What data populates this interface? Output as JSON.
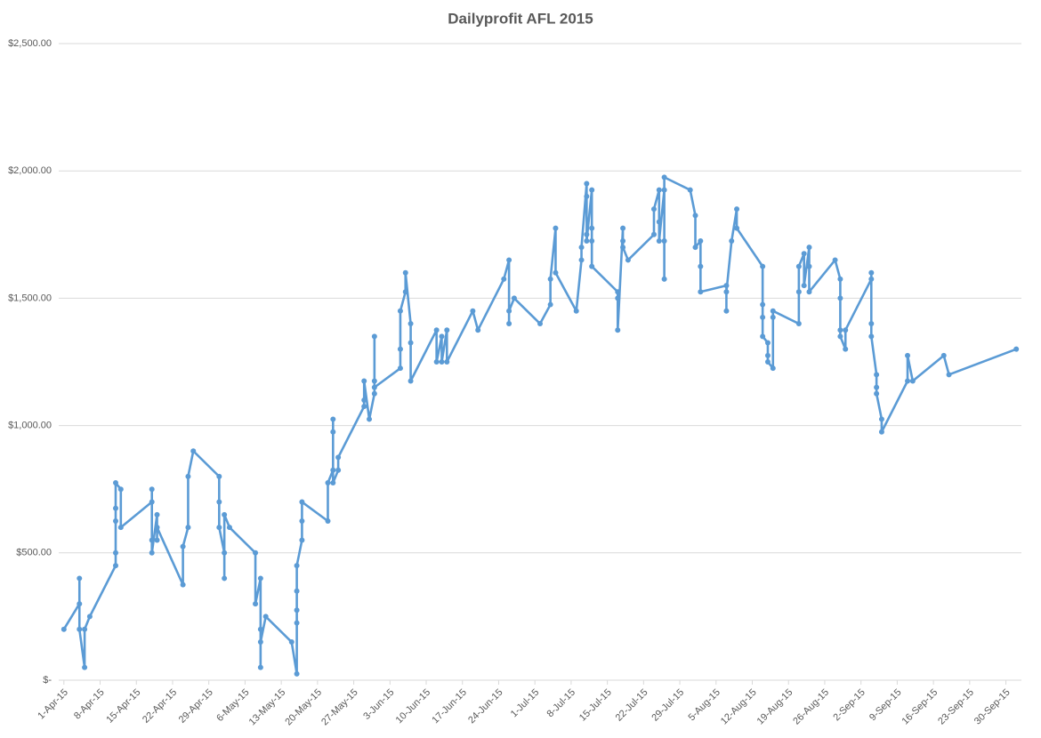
{
  "chart_data": {
    "type": "line",
    "title": "Dailyprofit AFL 2015",
    "color": "#5b9bd5",
    "grid": true,
    "x": [
      "2015-04-01",
      "2015-04-04",
      "2015-04-04",
      "2015-04-04",
      "2015-04-05",
      "2015-04-05",
      "2015-04-06",
      "2015-04-11",
      "2015-04-11",
      "2015-04-11",
      "2015-04-11",
      "2015-04-11",
      "2015-04-12",
      "2015-04-12",
      "2015-04-18",
      "2015-04-18",
      "2015-04-18",
      "2015-04-18",
      "2015-04-19",
      "2015-04-19",
      "2015-04-19",
      "2015-04-24",
      "2015-04-24",
      "2015-04-25",
      "2015-04-25",
      "2015-04-26",
      "2015-05-01",
      "2015-05-01",
      "2015-05-01",
      "2015-05-02",
      "2015-05-02",
      "2015-05-02",
      "2015-05-03",
      "2015-05-08",
      "2015-05-08",
      "2015-05-09",
      "2015-05-09",
      "2015-05-09",
      "2015-05-09",
      "2015-05-10",
      "2015-05-15",
      "2015-05-16",
      "2015-05-16",
      "2015-05-16",
      "2015-05-16",
      "2015-05-16",
      "2015-05-17",
      "2015-05-17",
      "2015-05-17",
      "2015-05-22",
      "2015-05-22",
      "2015-05-23",
      "2015-05-23",
      "2015-05-23",
      "2015-05-23",
      "2015-05-24",
      "2015-05-24",
      "2015-05-29",
      "2015-05-29",
      "2015-05-29",
      "2015-05-30",
      "2015-05-31",
      "2015-05-31",
      "2015-05-31",
      "2015-05-31",
      "2015-06-05",
      "2015-06-05",
      "2015-06-05",
      "2015-06-06",
      "2015-06-06",
      "2015-06-07",
      "2015-06-07",
      "2015-06-07",
      "2015-06-12",
      "2015-06-12",
      "2015-06-13",
      "2015-06-13",
      "2015-06-14",
      "2015-06-14",
      "2015-06-19",
      "2015-06-20",
      "2015-06-25",
      "2015-06-26",
      "2015-06-26",
      "2015-06-26",
      "2015-06-27",
      "2015-07-02",
      "2015-07-04",
      "2015-07-04",
      "2015-07-05",
      "2015-07-05",
      "2015-07-09",
      "2015-07-10",
      "2015-07-10",
      "2015-07-11",
      "2015-07-11",
      "2015-07-11",
      "2015-07-11",
      "2015-07-12",
      "2015-07-12",
      "2015-07-12",
      "2015-07-12",
      "2015-07-17",
      "2015-07-17",
      "2015-07-17",
      "2015-07-18",
      "2015-07-18",
      "2015-07-18",
      "2015-07-19",
      "2015-07-24",
      "2015-07-24",
      "2015-07-25",
      "2015-07-25",
      "2015-07-25",
      "2015-07-26",
      "2015-07-26",
      "2015-07-26",
      "2015-07-26",
      "2015-07-31",
      "2015-08-01",
      "2015-08-01",
      "2015-08-02",
      "2015-08-02",
      "2015-08-02",
      "2015-08-07",
      "2015-08-07",
      "2015-08-07",
      "2015-08-08",
      "2015-08-09",
      "2015-08-09",
      "2015-08-14",
      "2015-08-14",
      "2015-08-14",
      "2015-08-14",
      "2015-08-15",
      "2015-08-15",
      "2015-08-15",
      "2015-08-16",
      "2015-08-16",
      "2015-08-16",
      "2015-08-21",
      "2015-08-21",
      "2015-08-21",
      "2015-08-22",
      "2015-08-22",
      "2015-08-23",
      "2015-08-23",
      "2015-08-23",
      "2015-08-28",
      "2015-08-29",
      "2015-08-29",
      "2015-08-29",
      "2015-08-29",
      "2015-08-30",
      "2015-08-30",
      "2015-09-04",
      "2015-09-04",
      "2015-09-04",
      "2015-09-04",
      "2015-09-05",
      "2015-09-05",
      "2015-09-05",
      "2015-09-06",
      "2015-09-06",
      "2015-09-11",
      "2015-09-11",
      "2015-09-12",
      "2015-09-18",
      "2015-09-19",
      "2015-10-02"
    ],
    "values": [
      200,
      300,
      400,
      200,
      50,
      200,
      250,
      450,
      500,
      625,
      675,
      775,
      750,
      600,
      700,
      750,
      550,
      500,
      650,
      550,
      600,
      375,
      525,
      600,
      800,
      900,
      800,
      700,
      600,
      500,
      400,
      650,
      600,
      500,
      300,
      400,
      200,
      50,
      150,
      250,
      150,
      25,
      225,
      275,
      350,
      450,
      550,
      625,
      700,
      625,
      775,
      825,
      975,
      1025,
      775,
      825,
      875,
      1075,
      1100,
      1175,
      1025,
      1125,
      1175,
      1350,
      1150,
      1225,
      1300,
      1450,
      1525,
      1600,
      1400,
      1325,
      1175,
      1375,
      1250,
      1350,
      1250,
      1375,
      1250,
      1450,
      1375,
      1575,
      1650,
      1400,
      1450,
      1500,
      1400,
      1475,
      1575,
      1775,
      1600,
      1450,
      1650,
      1700,
      1950,
      1900,
      1750,
      1725,
      1925,
      1775,
      1725,
      1625,
      1525,
      1500,
      1375,
      1775,
      1725,
      1700,
      1650,
      1750,
      1850,
      1925,
      1800,
      1725,
      1925,
      1725,
      1575,
      1975,
      1925,
      1825,
      1700,
      1725,
      1625,
      1525,
      1550,
      1450,
      1525,
      1725,
      1850,
      1775,
      1625,
      1475,
      1425,
      1350,
      1325,
      1275,
      1250,
      1225,
      1425,
      1450,
      1400,
      1525,
      1625,
      1675,
      1550,
      1700,
      1625,
      1525,
      1650,
      1575,
      1500,
      1375,
      1350,
      1300,
      1375,
      1575,
      1600,
      1400,
      1350,
      1200,
      1150,
      1125,
      1025,
      975,
      1175,
      1275,
      1175,
      1275,
      1200,
      1300
    ],
    "xlim": [
      "2015-03-31",
      "2015-10-03"
    ],
    "xticks": [
      {
        "value": "2015-04-01",
        "label": "1-Apr-15"
      },
      {
        "value": "2015-04-08",
        "label": "8-Apr-15"
      },
      {
        "value": "2015-04-15",
        "label": "15-Apr-15"
      },
      {
        "value": "2015-04-22",
        "label": "22-Apr-15"
      },
      {
        "value": "2015-04-29",
        "label": "29-Apr-15"
      },
      {
        "value": "2015-05-06",
        "label": "6-May-15"
      },
      {
        "value": "2015-05-13",
        "label": "13-May-15"
      },
      {
        "value": "2015-05-20",
        "label": "20-May-15"
      },
      {
        "value": "2015-05-27",
        "label": "27-May-15"
      },
      {
        "value": "2015-06-03",
        "label": "3-Jun-15"
      },
      {
        "value": "2015-06-10",
        "label": "10-Jun-15"
      },
      {
        "value": "2015-06-17",
        "label": "17-Jun-15"
      },
      {
        "value": "2015-06-24",
        "label": "24-Jun-15"
      },
      {
        "value": "2015-07-01",
        "label": "1-Jul-15"
      },
      {
        "value": "2015-07-08",
        "label": "8-Jul-15"
      },
      {
        "value": "2015-07-15",
        "label": "15-Jul-15"
      },
      {
        "value": "2015-07-22",
        "label": "22-Jul-15"
      },
      {
        "value": "2015-07-29",
        "label": "29-Jul-15"
      },
      {
        "value": "2015-08-05",
        "label": "5-Aug-15"
      },
      {
        "value": "2015-08-12",
        "label": "12-Aug-15"
      },
      {
        "value": "2015-08-19",
        "label": "19-Aug-15"
      },
      {
        "value": "2015-08-26",
        "label": "26-Aug-15"
      },
      {
        "value": "2015-09-02",
        "label": "2-Sep-15"
      },
      {
        "value": "2015-09-09",
        "label": "9-Sep-15"
      },
      {
        "value": "2015-09-16",
        "label": "16-Sep-15"
      },
      {
        "value": "2015-09-23",
        "label": "23-Sep-15"
      },
      {
        "value": "2015-09-30",
        "label": "30-Sep-15"
      }
    ],
    "ylim": [
      0,
      2500
    ],
    "yticks": [
      {
        "value": 0,
        "label": "$-"
      },
      {
        "value": 500,
        "label": "$500.00"
      },
      {
        "value": 1000,
        "label": "$1,000.00"
      },
      {
        "value": 1500,
        "label": "$1,500.00"
      },
      {
        "value": 2000,
        "label": "$2,000.00"
      },
      {
        "value": 2500,
        "label": "$2,500.00"
      }
    ]
  }
}
